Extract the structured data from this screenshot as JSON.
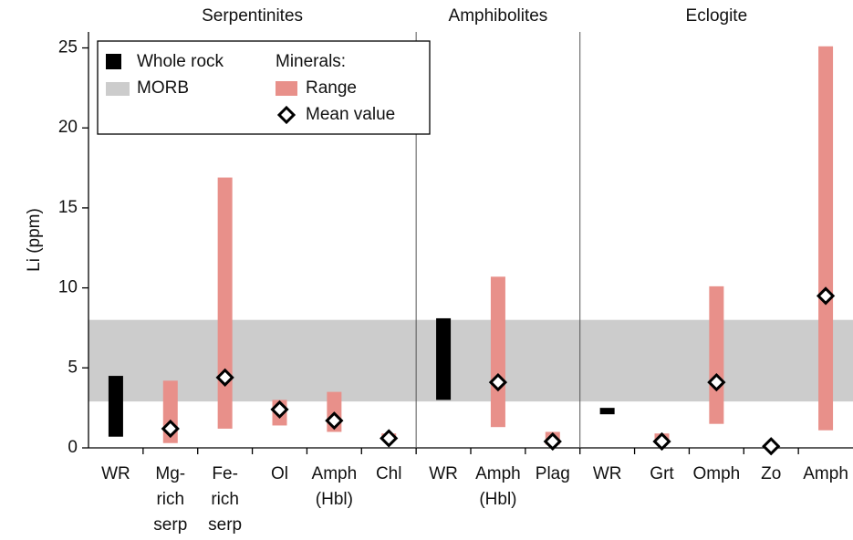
{
  "chart_data": {
    "type": "range",
    "y_label": "Li (ppm)",
    "groups": [
      {
        "name": "Serpentinites",
        "categories": [
          [
            "WR"
          ],
          [
            "Mg-",
            "rich",
            "serp"
          ],
          [
            "Fe-",
            "rich",
            "serp"
          ],
          [
            "Ol"
          ],
          [
            "Amph",
            "(Hbl)"
          ],
          [
            "Chl"
          ]
        ]
      },
      {
        "name": "Amphibolites",
        "categories": [
          [
            "WR"
          ],
          [
            "Amph",
            "(Hbl)"
          ],
          [
            "Plag"
          ]
        ]
      },
      {
        "name": "Eclogite",
        "categories": [
          [
            "WR"
          ],
          [
            "Grt"
          ],
          [
            "Omph"
          ],
          [
            "Zo"
          ],
          [
            "Amph"
          ]
        ]
      }
    ],
    "ylim": [
      0,
      26
    ],
    "yticks": [
      0,
      5,
      10,
      15,
      20,
      25
    ],
    "band": {
      "name": "MORB",
      "color": "#cccccc",
      "low": 2.9,
      "high": 8.0
    },
    "legend_title": "Minerals:",
    "series": [
      {
        "name": "Whole rock",
        "color": "#000000",
        "low": [
          0.7,
          null,
          null,
          null,
          null,
          null,
          3.0,
          null,
          null,
          2.1,
          null,
          null,
          null,
          null
        ],
        "high": [
          4.5,
          null,
          null,
          null,
          null,
          null,
          8.1,
          null,
          null,
          2.5,
          null,
          null,
          null,
          null
        ]
      },
      {
        "name": "Range",
        "color": "#e8908a",
        "low": [
          null,
          0.3,
          1.2,
          1.4,
          1.0,
          0.5,
          null,
          1.3,
          0.2,
          null,
          0.3,
          1.5,
          null,
          1.1
        ],
        "high": [
          null,
          4.2,
          16.9,
          3.0,
          3.5,
          0.9,
          null,
          10.7,
          1.0,
          null,
          0.9,
          10.1,
          null,
          25.1
        ]
      },
      {
        "name": "Mean value",
        "color": "#000000",
        "values": [
          null,
          1.2,
          4.4,
          2.4,
          1.7,
          0.6,
          null,
          4.1,
          0.4,
          null,
          0.4,
          4.1,
          0.1,
          9.5
        ]
      }
    ]
  }
}
